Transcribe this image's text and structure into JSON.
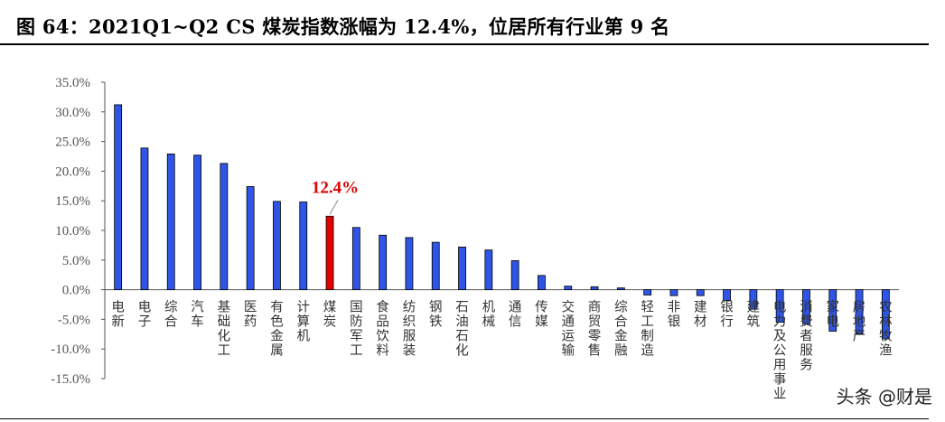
{
  "title": "图 64：2021Q1~Q2 CS 煤炭指数涨幅为 12.4%，位居所有行业第 9 名",
  "watermark": "头条 @财是",
  "colors": {
    "bar": "#2f55e6",
    "highlight": "#e00000",
    "axis": "#555555",
    "annotation": "#e00000"
  },
  "chart_data": {
    "type": "bar",
    "title": "",
    "xlabel": "",
    "ylabel": "",
    "ylim": [
      -15,
      35
    ],
    "yticks": [
      35,
      30,
      25,
      20,
      15,
      10,
      5,
      0,
      -5,
      -10,
      -15
    ],
    "ytick_labels": [
      "35.0%",
      "30.0%",
      "25.0%",
      "20.0%",
      "15.0%",
      "10.0%",
      "5.0%",
      "0.0%",
      "-5.0%",
      "-10.0%",
      "-15.0%"
    ],
    "grid": false,
    "categories": [
      "电新",
      "电子",
      "综合",
      "汽车",
      "基础化工",
      "医药",
      "有色金属",
      "计算机",
      "煤炭",
      "国防军工",
      "食品饮料",
      "纺织服装",
      "钢铁",
      "石油石化",
      "机械",
      "通信",
      "传媒",
      "交通运输",
      "商贸零售",
      "综合金融",
      "轻工制造",
      "非银",
      "建材",
      "银行",
      "建筑",
      "电力及公用事业",
      "消费者服务",
      "家电",
      "房地产",
      "农林牧渔"
    ],
    "values": [
      31.2,
      23.9,
      22.9,
      22.7,
      21.3,
      17.4,
      14.9,
      14.8,
      12.4,
      10.5,
      9.2,
      8.8,
      8.0,
      7.2,
      6.7,
      4.9,
      2.4,
      0.6,
      0.5,
      0.3,
      -0.9,
      -1.0,
      -1.0,
      -1.8,
      -3.3,
      -5.5,
      -5.8,
      -7.0,
      -7.4,
      -8.3
    ],
    "highlight_category": "煤炭",
    "annotation": "12.4%"
  }
}
